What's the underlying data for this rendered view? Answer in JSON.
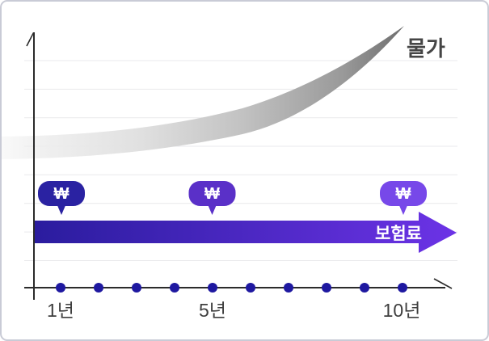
{
  "card": {
    "background": "#ffffff",
    "border_color": "#c9cbd6"
  },
  "labels": {
    "price_curve": "물가",
    "premium_band": "보험료",
    "won_symbol": "₩",
    "year_1": "1년",
    "year_5": "5년",
    "year_10": "10년"
  },
  "colors": {
    "axis": "#2b2b2b",
    "gridline": "#e9e9ec",
    "dot": "#1e18a0",
    "curve_start": "#ededed",
    "curve_mid": "#c2c2c2",
    "curve_end": "#6e6e6e",
    "band_start": "#2a1c9e",
    "band_end": "#6c33e6",
    "bubble_year1": "#2a22a2",
    "bubble_year5": "#5a30c8",
    "bubble_year10": "#7748e9",
    "label_text": "#3e3e3e",
    "price_label_text": "#454545"
  },
  "chart_data": {
    "type": "line",
    "title": "",
    "xlabel": "",
    "ylabel": "",
    "x_axis": {
      "tick_count": 10,
      "tick_style": "dots",
      "labeled_ticks": [
        {
          "index": 1,
          "label": "1년"
        },
        {
          "index": 5,
          "label": "5년"
        },
        {
          "index": 10,
          "label": "10년"
        }
      ]
    },
    "y_axis": {
      "gridlines": 8,
      "numeric_labels": false
    },
    "series": [
      {
        "name": "물가",
        "type": "curve-ribbon",
        "trend": "exponential rise over time",
        "color_gradient": [
          "#ededed",
          "#6e6e6e"
        ],
        "estimated_levels_gridline_units": [
          4.9,
          5.0,
          5.2,
          5.5,
          5.9,
          6.3,
          6.9,
          7.6,
          8.4,
          9.2
        ]
      },
      {
        "name": "보험료",
        "type": "flat-arrow-band",
        "trend": "constant over time",
        "color_gradient": [
          "#2a1c9e",
          "#6c33e6"
        ],
        "estimated_level_gridline_units": 2.0
      }
    ],
    "annotations": [
      {
        "at_year": 1,
        "symbol": "₩",
        "shape": "speech-bubble",
        "color": "#2a22a2"
      },
      {
        "at_year": 5,
        "symbol": "₩",
        "shape": "speech-bubble",
        "color": "#5a30c8"
      },
      {
        "at_year": 10,
        "symbol": "₩",
        "shape": "speech-bubble",
        "color": "#7748e9"
      }
    ],
    "legend": "none"
  }
}
